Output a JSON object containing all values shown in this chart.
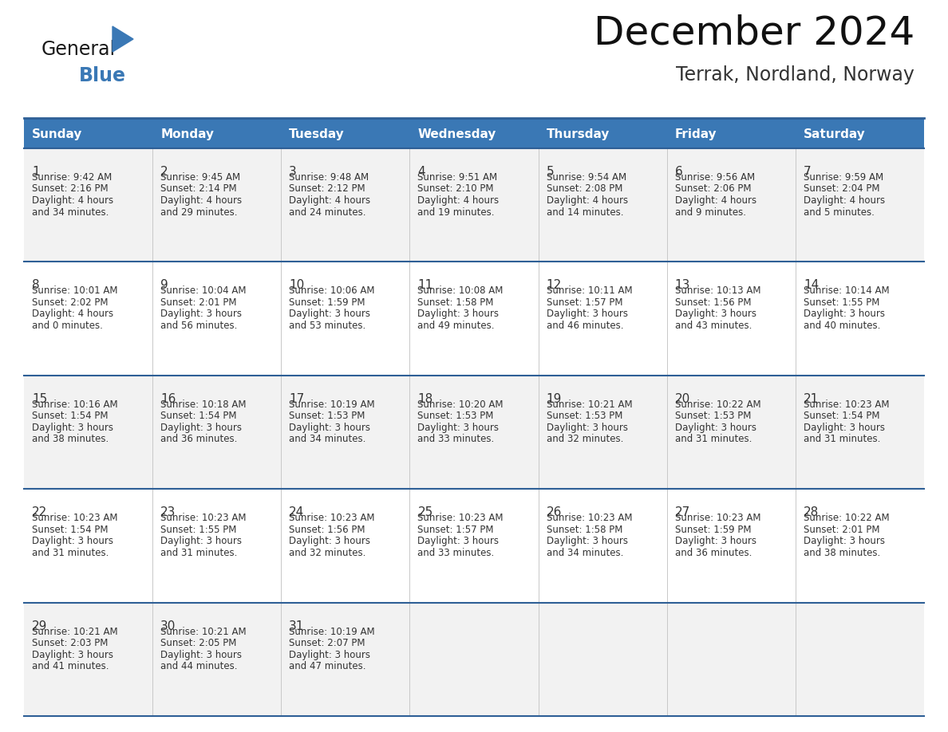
{
  "title": "December 2024",
  "subtitle": "Terrak, Nordland, Norway",
  "days_of_week": [
    "Sunday",
    "Monday",
    "Tuesday",
    "Wednesday",
    "Thursday",
    "Friday",
    "Saturday"
  ],
  "header_bg_color": "#3a78b5",
  "header_text_color": "#ffffff",
  "row_bg_colors": [
    "#f2f2f2",
    "#ffffff",
    "#f2f2f2",
    "#ffffff",
    "#f2f2f2"
  ],
  "border_color": "#2e5f96",
  "text_color": "#333333",
  "calendar_data": [
    {
      "day": 1,
      "col": 0,
      "row": 0,
      "sunrise": "9:42 AM",
      "sunset": "2:16 PM",
      "daylight_h": "4 hours",
      "daylight_m": "34 minutes."
    },
    {
      "day": 2,
      "col": 1,
      "row": 0,
      "sunrise": "9:45 AM",
      "sunset": "2:14 PM",
      "daylight_h": "4 hours",
      "daylight_m": "29 minutes."
    },
    {
      "day": 3,
      "col": 2,
      "row": 0,
      "sunrise": "9:48 AM",
      "sunset": "2:12 PM",
      "daylight_h": "4 hours",
      "daylight_m": "24 minutes."
    },
    {
      "day": 4,
      "col": 3,
      "row": 0,
      "sunrise": "9:51 AM",
      "sunset": "2:10 PM",
      "daylight_h": "4 hours",
      "daylight_m": "19 minutes."
    },
    {
      "day": 5,
      "col": 4,
      "row": 0,
      "sunrise": "9:54 AM",
      "sunset": "2:08 PM",
      "daylight_h": "4 hours",
      "daylight_m": "14 minutes."
    },
    {
      "day": 6,
      "col": 5,
      "row": 0,
      "sunrise": "9:56 AM",
      "sunset": "2:06 PM",
      "daylight_h": "4 hours",
      "daylight_m": "9 minutes."
    },
    {
      "day": 7,
      "col": 6,
      "row": 0,
      "sunrise": "9:59 AM",
      "sunset": "2:04 PM",
      "daylight_h": "4 hours",
      "daylight_m": "5 minutes."
    },
    {
      "day": 8,
      "col": 0,
      "row": 1,
      "sunrise": "10:01 AM",
      "sunset": "2:02 PM",
      "daylight_h": "4 hours",
      "daylight_m": "0 minutes."
    },
    {
      "day": 9,
      "col": 1,
      "row": 1,
      "sunrise": "10:04 AM",
      "sunset": "2:01 PM",
      "daylight_h": "3 hours",
      "daylight_m": "56 minutes."
    },
    {
      "day": 10,
      "col": 2,
      "row": 1,
      "sunrise": "10:06 AM",
      "sunset": "1:59 PM",
      "daylight_h": "3 hours",
      "daylight_m": "53 minutes."
    },
    {
      "day": 11,
      "col": 3,
      "row": 1,
      "sunrise": "10:08 AM",
      "sunset": "1:58 PM",
      "daylight_h": "3 hours",
      "daylight_m": "49 minutes."
    },
    {
      "day": 12,
      "col": 4,
      "row": 1,
      "sunrise": "10:11 AM",
      "sunset": "1:57 PM",
      "daylight_h": "3 hours",
      "daylight_m": "46 minutes."
    },
    {
      "day": 13,
      "col": 5,
      "row": 1,
      "sunrise": "10:13 AM",
      "sunset": "1:56 PM",
      "daylight_h": "3 hours",
      "daylight_m": "43 minutes."
    },
    {
      "day": 14,
      "col": 6,
      "row": 1,
      "sunrise": "10:14 AM",
      "sunset": "1:55 PM",
      "daylight_h": "3 hours",
      "daylight_m": "40 minutes."
    },
    {
      "day": 15,
      "col": 0,
      "row": 2,
      "sunrise": "10:16 AM",
      "sunset": "1:54 PM",
      "daylight_h": "3 hours",
      "daylight_m": "38 minutes."
    },
    {
      "day": 16,
      "col": 1,
      "row": 2,
      "sunrise": "10:18 AM",
      "sunset": "1:54 PM",
      "daylight_h": "3 hours",
      "daylight_m": "36 minutes."
    },
    {
      "day": 17,
      "col": 2,
      "row": 2,
      "sunrise": "10:19 AM",
      "sunset": "1:53 PM",
      "daylight_h": "3 hours",
      "daylight_m": "34 minutes."
    },
    {
      "day": 18,
      "col": 3,
      "row": 2,
      "sunrise": "10:20 AM",
      "sunset": "1:53 PM",
      "daylight_h": "3 hours",
      "daylight_m": "33 minutes."
    },
    {
      "day": 19,
      "col": 4,
      "row": 2,
      "sunrise": "10:21 AM",
      "sunset": "1:53 PM",
      "daylight_h": "3 hours",
      "daylight_m": "32 minutes."
    },
    {
      "day": 20,
      "col": 5,
      "row": 2,
      "sunrise": "10:22 AM",
      "sunset": "1:53 PM",
      "daylight_h": "3 hours",
      "daylight_m": "31 minutes."
    },
    {
      "day": 21,
      "col": 6,
      "row": 2,
      "sunrise": "10:23 AM",
      "sunset": "1:54 PM",
      "daylight_h": "3 hours",
      "daylight_m": "31 minutes."
    },
    {
      "day": 22,
      "col": 0,
      "row": 3,
      "sunrise": "10:23 AM",
      "sunset": "1:54 PM",
      "daylight_h": "3 hours",
      "daylight_m": "31 minutes."
    },
    {
      "day": 23,
      "col": 1,
      "row": 3,
      "sunrise": "10:23 AM",
      "sunset": "1:55 PM",
      "daylight_h": "3 hours",
      "daylight_m": "31 minutes."
    },
    {
      "day": 24,
      "col": 2,
      "row": 3,
      "sunrise": "10:23 AM",
      "sunset": "1:56 PM",
      "daylight_h": "3 hours",
      "daylight_m": "32 minutes."
    },
    {
      "day": 25,
      "col": 3,
      "row": 3,
      "sunrise": "10:23 AM",
      "sunset": "1:57 PM",
      "daylight_h": "3 hours",
      "daylight_m": "33 minutes."
    },
    {
      "day": 26,
      "col": 4,
      "row": 3,
      "sunrise": "10:23 AM",
      "sunset": "1:58 PM",
      "daylight_h": "3 hours",
      "daylight_m": "34 minutes."
    },
    {
      "day": 27,
      "col": 5,
      "row": 3,
      "sunrise": "10:23 AM",
      "sunset": "1:59 PM",
      "daylight_h": "3 hours",
      "daylight_m": "36 minutes."
    },
    {
      "day": 28,
      "col": 6,
      "row": 3,
      "sunrise": "10:22 AM",
      "sunset": "2:01 PM",
      "daylight_h": "3 hours",
      "daylight_m": "38 minutes."
    },
    {
      "day": 29,
      "col": 0,
      "row": 4,
      "sunrise": "10:21 AM",
      "sunset": "2:03 PM",
      "daylight_h": "3 hours",
      "daylight_m": "41 minutes."
    },
    {
      "day": 30,
      "col": 1,
      "row": 4,
      "sunrise": "10:21 AM",
      "sunset": "2:05 PM",
      "daylight_h": "3 hours",
      "daylight_m": "44 minutes."
    },
    {
      "day": 31,
      "col": 2,
      "row": 4,
      "sunrise": "10:19 AM",
      "sunset": "2:07 PM",
      "daylight_h": "3 hours",
      "daylight_m": "47 minutes."
    }
  ],
  "num_rows": 5,
  "num_cols": 7,
  "fig_width": 11.88,
  "fig_height": 9.18,
  "dpi": 100,
  "logo_text_general": "General",
  "logo_text_blue": "Blue",
  "logo_triangle_color": "#3a78b5",
  "logo_general_color": "#1a1a1a",
  "logo_blue_color": "#3a78b5",
  "title_fontsize": 36,
  "subtitle_fontsize": 17,
  "header_fontsize": 11,
  "day_num_fontsize": 11,
  "cell_text_fontsize": 8.5
}
